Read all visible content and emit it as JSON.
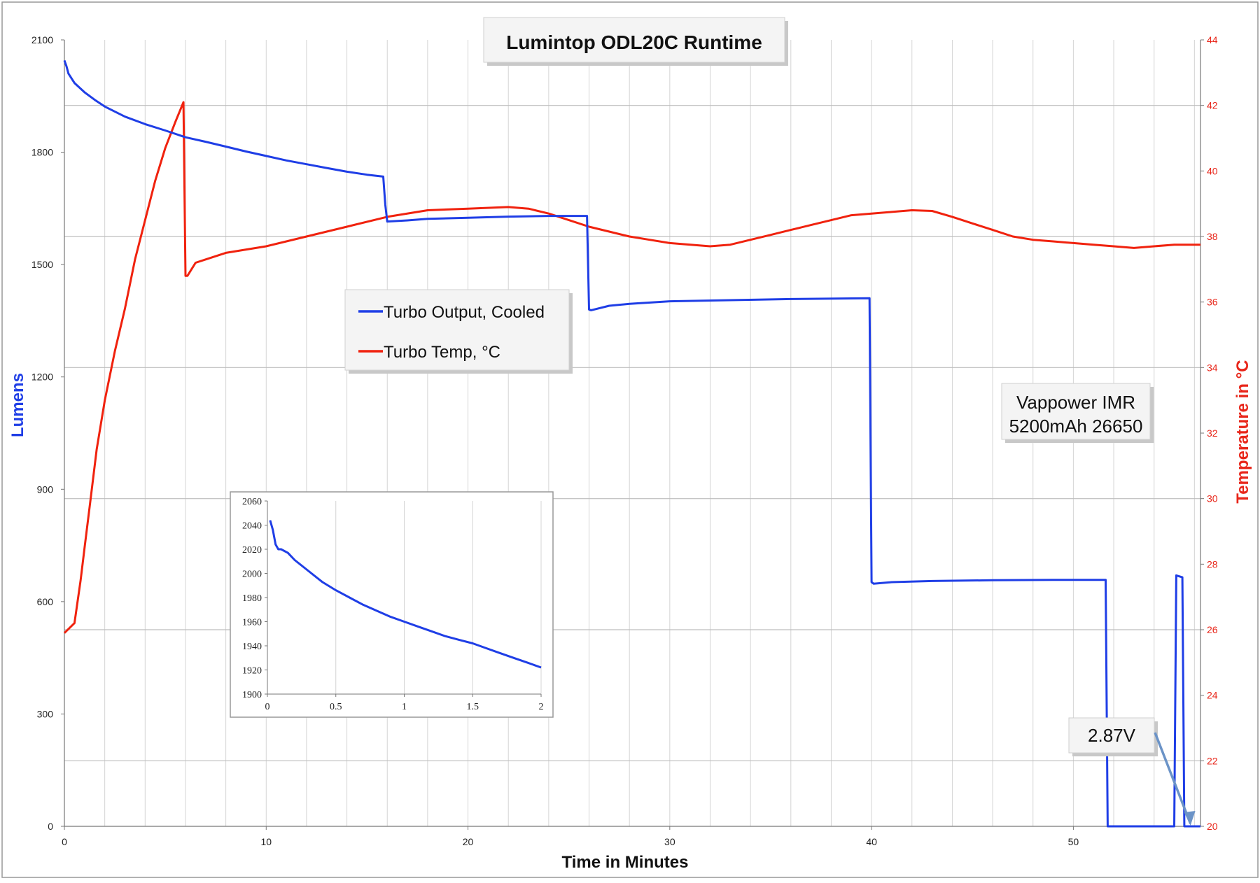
{
  "chart_data": {
    "type": "line",
    "title": "Lumintop ODL20C Runtime",
    "xlabel": "Time in Minutes",
    "ylabel_left": "Lumens",
    "ylabel_right": "Temperature in °C",
    "xlim": [
      0,
      56.3
    ],
    "ylim_left": [
      0,
      2100
    ],
    "ylim_right": [
      20,
      44
    ],
    "x_ticks": [
      0,
      10,
      20,
      30,
      40,
      50
    ],
    "y_ticks_left": [
      0,
      300,
      600,
      900,
      1200,
      1500,
      1800,
      2100
    ],
    "y_ticks_right": [
      20,
      22,
      24,
      26,
      28,
      30,
      32,
      34,
      36,
      38,
      40,
      42,
      44
    ],
    "grid": true,
    "legend": "center-left",
    "colors": {
      "lumens": "#1f3ee6",
      "temp": "#f0220e",
      "arrow": "#6b93c7"
    },
    "series": [
      {
        "name": "Turbo Output, Cooled",
        "axis": "left",
        "color": "#1f3ee6",
        "x": [
          0,
          0.1,
          0.2,
          0.5,
          1,
          1.5,
          2,
          3,
          4,
          5,
          6,
          7,
          8,
          9,
          10,
          11,
          12,
          13,
          14,
          15,
          15.8,
          15.9,
          16.0,
          17,
          18,
          20,
          22,
          24,
          25.9,
          26.0,
          26.1,
          27,
          28,
          30,
          33,
          36,
          39.9,
          40.0,
          40.1,
          41,
          43,
          46,
          49,
          51.6,
          51.7,
          55.0,
          55.1,
          55.4,
          55.5,
          56.3
        ],
        "y": [
          2045,
          2030,
          2010,
          1985,
          1960,
          1940,
          1922,
          1895,
          1875,
          1858,
          1840,
          1828,
          1815,
          1802,
          1790,
          1778,
          1768,
          1758,
          1748,
          1740,
          1735,
          1660,
          1615,
          1618,
          1622,
          1625,
          1628,
          1630,
          1630,
          1380,
          1378,
          1390,
          1395,
          1402,
          1405,
          1408,
          1410,
          652,
          648,
          652,
          655,
          657,
          658,
          658,
          0,
          0,
          670,
          665,
          0,
          0
        ]
      },
      {
        "name": "Turbo Temp, °C",
        "axis": "right",
        "color": "#f0220e",
        "x": [
          0,
          0.5,
          0.8,
          1,
          1.3,
          1.6,
          2,
          2.5,
          3,
          3.5,
          4,
          4.5,
          5,
          5.5,
          5.9,
          6.0,
          6.1,
          6.5,
          7,
          8,
          10,
          12,
          14,
          16,
          18,
          20,
          22,
          23,
          24,
          25,
          26,
          27,
          28,
          29,
          30,
          32,
          33,
          34,
          35,
          36,
          37,
          38,
          39,
          40,
          41,
          42,
          43,
          44,
          45,
          46,
          47,
          48,
          49,
          50,
          51,
          52,
          53,
          54,
          55,
          56.3
        ],
        "y": [
          25.9,
          26.2,
          27.5,
          28.5,
          30,
          31.5,
          33,
          34.5,
          35.8,
          37.3,
          38.5,
          39.7,
          40.7,
          41.5,
          42.1,
          36.8,
          36.8,
          37.2,
          37.3,
          37.5,
          37.7,
          38.0,
          38.3,
          38.6,
          38.8,
          38.85,
          38.9,
          38.85,
          38.7,
          38.5,
          38.3,
          38.15,
          38.0,
          37.9,
          37.8,
          37.7,
          37.75,
          37.9,
          38.05,
          38.2,
          38.35,
          38.5,
          38.65,
          38.7,
          38.75,
          38.8,
          38.78,
          38.6,
          38.4,
          38.2,
          38.0,
          37.9,
          37.85,
          37.8,
          37.75,
          37.7,
          37.65,
          37.7,
          37.75,
          37.75
        ]
      }
    ],
    "inset": {
      "xlim": [
        0,
        2
      ],
      "ylim": [
        1900,
        2060
      ],
      "x_ticks": [
        0,
        0.5,
        1,
        1.5,
        2
      ],
      "x_tick_labels": [
        "0",
        "0.5",
        "1",
        "1.5",
        "2"
      ],
      "y_ticks": [
        1900,
        1920,
        1940,
        1960,
        1980,
        2000,
        2020,
        2040,
        2060
      ],
      "x": [
        0.02,
        0.04,
        0.06,
        0.08,
        0.1,
        0.15,
        0.2,
        0.3,
        0.4,
        0.5,
        0.6,
        0.7,
        0.8,
        0.9,
        1.0,
        1.1,
        1.2,
        1.3,
        1.4,
        1.5,
        1.6,
        1.7,
        1.8,
        1.9,
        2.0
      ],
      "y": [
        2044,
        2036,
        2024,
        2020,
        2020,
        2017,
        2011,
        2002,
        1993,
        1986,
        1980,
        1974,
        1969,
        1964,
        1960,
        1956,
        1952,
        1948,
        1945,
        1942,
        1938,
        1934,
        1930,
        1926,
        1922
      ]
    },
    "annotations": {
      "battery": [
        "Vappower IMR",
        "5200mAh 26650"
      ],
      "voltage": "2.87V",
      "voltage_arrow_target": [
        55.8,
        0
      ]
    }
  }
}
